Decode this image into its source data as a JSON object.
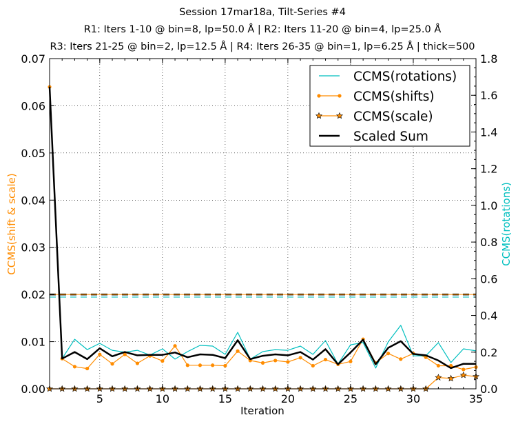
{
  "chart_data": {
    "type": "line",
    "title_lines": [
      "Session 17mar18a, Tilt-Series #4",
      "R1: Iters 1-10 @ bin=8, lp=50.0 Å | R2: Iters 11-20 @ bin=4, lp=25.0 Å",
      "R3: Iters 21-25 @ bin=2, lp=12.5 Å | R4: Iters 26-35 @ bin=1, lp=6.25 Å | thick=500"
    ],
    "xlabel": "Iteration",
    "ylabel_left": "CCMS(shift & scale)",
    "ylabel_right": "CCMS(rotations)",
    "xlim": [
      1,
      35
    ],
    "ylim_left": [
      0,
      0.07
    ],
    "ylim_right": [
      0,
      1.8
    ],
    "x_ticks": [
      "5",
      "10",
      "15",
      "20",
      "25",
      "30",
      "35"
    ],
    "y_ticks_left": [
      "0.00",
      "0.01",
      "0.02",
      "0.03",
      "0.04",
      "0.05",
      "0.06",
      "0.07"
    ],
    "y_ticks_right": [
      "0.0",
      "0.2",
      "0.4",
      "0.6",
      "0.8",
      "1.0",
      "1.2",
      "1.4",
      "1.6",
      "1.8"
    ],
    "grid": true,
    "legend_placement": "top-right",
    "x": [
      1,
      2,
      3,
      4,
      5,
      6,
      7,
      8,
      9,
      10,
      11,
      12,
      13,
      14,
      15,
      16,
      17,
      18,
      19,
      20,
      21,
      22,
      23,
      24,
      25,
      26,
      27,
      28,
      29,
      30,
      31,
      32,
      33,
      34,
      35
    ],
    "series": [
      {
        "name": "CCMS(rotations)",
        "axis": "right",
        "color": "#00bfbf",
        "marker": "none",
        "values": [
          1.646,
          0.165,
          0.27,
          0.214,
          0.248,
          0.21,
          0.2,
          0.21,
          0.184,
          0.218,
          0.162,
          0.203,
          0.237,
          0.233,
          0.188,
          0.308,
          0.162,
          0.203,
          0.214,
          0.21,
          0.233,
          0.188,
          0.263,
          0.135,
          0.24,
          0.252,
          0.113,
          0.256,
          0.346,
          0.18,
          0.18,
          0.252,
          0.143,
          0.218,
          0.207
        ]
      },
      {
        "name": "CCMS(shifts)",
        "axis": "left",
        "color": "#ff8c00",
        "marker": "dot",
        "values": [
          0.064,
          0.0064,
          0.0047,
          0.0043,
          0.0073,
          0.0053,
          0.0073,
          0.0054,
          0.007,
          0.0059,
          0.0091,
          0.005,
          0.005,
          0.005,
          0.0049,
          0.008,
          0.006,
          0.0055,
          0.006,
          0.0057,
          0.0066,
          0.0049,
          0.0062,
          0.0052,
          0.0058,
          0.0105,
          0.0055,
          0.0075,
          0.0063,
          0.0075,
          0.0067,
          0.0049,
          0.0049,
          0.0041,
          0.0046
        ]
      },
      {
        "name": "CCMS(scale)",
        "axis": "left",
        "color": "#ff8c00",
        "marker": "star",
        "values": [
          0,
          0,
          0,
          0,
          0,
          0,
          0,
          0,
          0,
          0,
          0,
          0,
          0,
          0,
          0,
          0,
          0,
          0,
          0,
          0,
          0,
          0,
          0,
          0,
          0,
          0,
          0,
          0,
          0,
          0,
          0,
          0.0024,
          0.0022,
          0.0029,
          0.0026
        ]
      },
      {
        "name": "Scaled Sum",
        "axis": "left",
        "color": "#000000",
        "marker": "none",
        "values": [
          0.064,
          0.0064,
          0.0078,
          0.0063,
          0.0086,
          0.0069,
          0.0078,
          0.0071,
          0.0072,
          0.0072,
          0.0077,
          0.0067,
          0.0073,
          0.0072,
          0.0065,
          0.0103,
          0.0063,
          0.007,
          0.0073,
          0.0071,
          0.0078,
          0.0062,
          0.0084,
          0.0052,
          0.0077,
          0.0104,
          0.0052,
          0.0087,
          0.0101,
          0.0074,
          0.0071,
          0.006,
          0.0044,
          0.0053,
          0.0053
        ]
      }
    ],
    "threshold_lines": [
      {
        "name": "scaled-sum-threshold",
        "axis": "left",
        "value": 0.02,
        "color": "#000000"
      },
      {
        "name": "shift-threshold",
        "axis": "left",
        "value": 0.02,
        "color": "#ff8c00"
      },
      {
        "name": "rotation-threshold",
        "axis": "right",
        "value": 0.5,
        "color": "#00bfbf"
      }
    ]
  }
}
